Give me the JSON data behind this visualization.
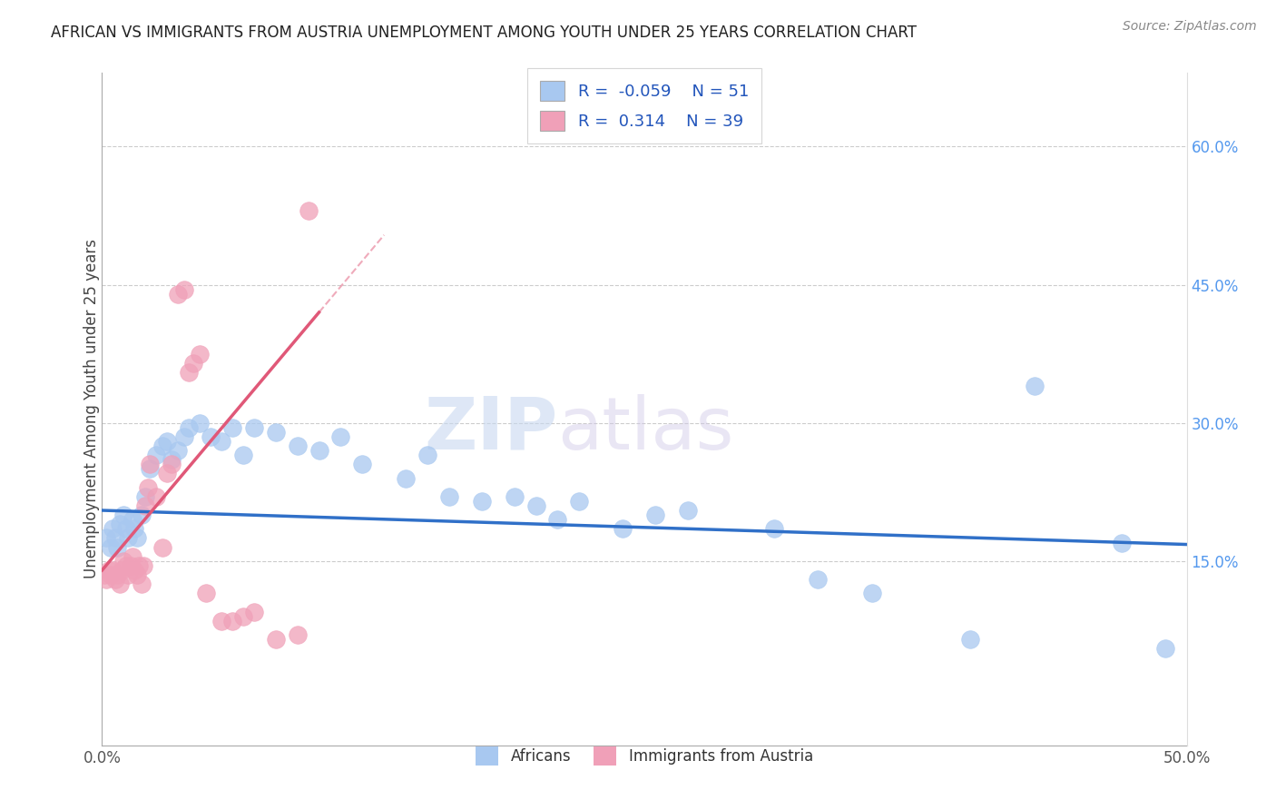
{
  "title": "AFRICAN VS IMMIGRANTS FROM AUSTRIA UNEMPLOYMENT AMONG YOUTH UNDER 25 YEARS CORRELATION CHART",
  "source": "Source: ZipAtlas.com",
  "ylabel": "Unemployment Among Youth under 25 years",
  "xlim": [
    0.0,
    0.5
  ],
  "ylim": [
    -0.05,
    0.68
  ],
  "xtick_positions": [
    0.0,
    0.5
  ],
  "xticklabels": [
    "0.0%",
    "50.0%"
  ],
  "yticks_right": [
    0.15,
    0.3,
    0.45,
    0.6
  ],
  "yticklabels_right": [
    "15.0%",
    "30.0%",
    "45.0%",
    "60.0%"
  ],
  "hlines": [
    0.15,
    0.3,
    0.45,
    0.6
  ],
  "blue_R": -0.059,
  "blue_N": 51,
  "pink_R": 0.314,
  "pink_N": 39,
  "legend_label1": "Africans",
  "legend_label2": "Immigrants from Austria",
  "watermark_part1": "ZIP",
  "watermark_part2": "atlas",
  "blue_color": "#a8c8f0",
  "pink_color": "#f0a0b8",
  "blue_line_color": "#3070c8",
  "pink_line_color": "#e05878",
  "blue_x": [
    0.002,
    0.004,
    0.005,
    0.006,
    0.007,
    0.008,
    0.01,
    0.011,
    0.012,
    0.014,
    0.015,
    0.016,
    0.018,
    0.02,
    0.022,
    0.025,
    0.028,
    0.03,
    0.032,
    0.035,
    0.038,
    0.04,
    0.045,
    0.05,
    0.055,
    0.06,
    0.065,
    0.07,
    0.08,
    0.09,
    0.1,
    0.11,
    0.12,
    0.14,
    0.15,
    0.16,
    0.175,
    0.19,
    0.2,
    0.21,
    0.22,
    0.24,
    0.255,
    0.27,
    0.31,
    0.33,
    0.355,
    0.4,
    0.43,
    0.47,
    0.49
  ],
  "blue_y": [
    0.175,
    0.165,
    0.185,
    0.175,
    0.165,
    0.19,
    0.2,
    0.185,
    0.175,
    0.195,
    0.185,
    0.175,
    0.2,
    0.22,
    0.25,
    0.265,
    0.275,
    0.28,
    0.26,
    0.27,
    0.285,
    0.295,
    0.3,
    0.285,
    0.28,
    0.295,
    0.265,
    0.295,
    0.29,
    0.275,
    0.27,
    0.285,
    0.255,
    0.24,
    0.265,
    0.22,
    0.215,
    0.22,
    0.21,
    0.195,
    0.215,
    0.185,
    0.2,
    0.205,
    0.185,
    0.13,
    0.115,
    0.065,
    0.34,
    0.17,
    0.055
  ],
  "pink_x": [
    0.001,
    0.002,
    0.003,
    0.004,
    0.005,
    0.006,
    0.007,
    0.008,
    0.009,
    0.01,
    0.011,
    0.012,
    0.013,
    0.014,
    0.015,
    0.016,
    0.017,
    0.018,
    0.019,
    0.02,
    0.021,
    0.022,
    0.025,
    0.028,
    0.03,
    0.032,
    0.035,
    0.038,
    0.04,
    0.042,
    0.045,
    0.048,
    0.055,
    0.06,
    0.065,
    0.07,
    0.08,
    0.09,
    0.095
  ],
  "pink_y": [
    0.135,
    0.13,
    0.14,
    0.135,
    0.14,
    0.13,
    0.135,
    0.125,
    0.14,
    0.15,
    0.145,
    0.135,
    0.145,
    0.155,
    0.14,
    0.135,
    0.145,
    0.125,
    0.145,
    0.21,
    0.23,
    0.255,
    0.22,
    0.165,
    0.245,
    0.255,
    0.44,
    0.445,
    0.355,
    0.365,
    0.375,
    0.115,
    0.085,
    0.085,
    0.09,
    0.095,
    0.065,
    0.07,
    0.53
  ],
  "blue_trend_x0": 0.0,
  "blue_trend_y0": 0.205,
  "blue_trend_x1": 0.5,
  "blue_trend_y1": 0.168,
  "pink_trend_x0": 0.0,
  "pink_trend_y0": 0.14,
  "pink_trend_x1": 0.1,
  "pink_trend_y1": 0.42
}
